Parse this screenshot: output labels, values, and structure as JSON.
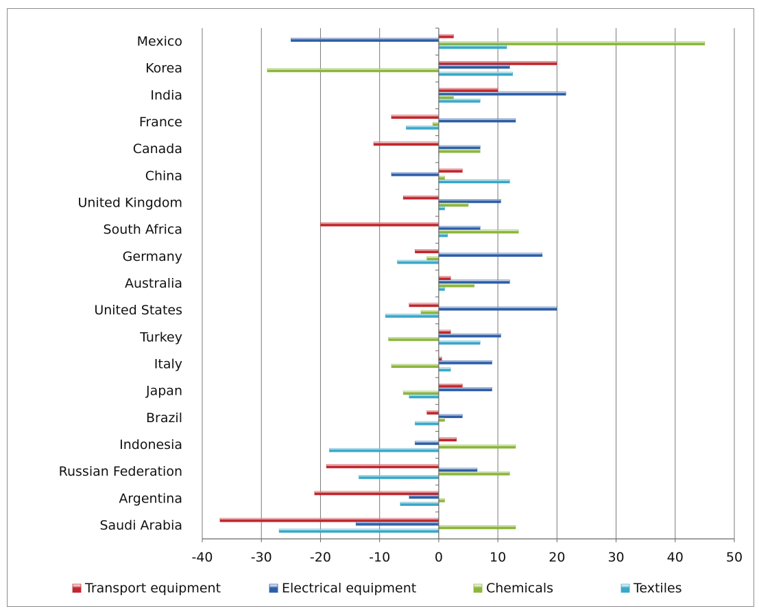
{
  "chart_data": {
    "type": "bar",
    "orientation": "horizontal",
    "categories": [
      "Mexico",
      "Korea",
      "India",
      "France",
      "Canada",
      "China",
      "United Kingdom",
      "South Africa",
      "Germany",
      "Australia",
      "United States",
      "Turkey",
      "Italy",
      "Japan",
      "Brazil",
      "Indonesia",
      "Russian Federation",
      "Argentina",
      "Saudi Arabia"
    ],
    "series": [
      {
        "name": "Transport equipment",
        "color": "#c0272d",
        "values": [
          2.5,
          20,
          10,
          -8,
          -11,
          4,
          -6,
          -20,
          -4,
          2,
          -5,
          2,
          0.5,
          4,
          -2,
          3,
          -19,
          -21,
          -37
        ]
      },
      {
        "name": "Electrical equipment",
        "color": "#2e5ea8",
        "values": [
          -25,
          12,
          21.5,
          13,
          7,
          -8,
          10.5,
          7,
          17.5,
          12,
          20,
          10.5,
          9,
          9,
          4,
          -4,
          6.5,
          -5,
          -14
        ]
      },
      {
        "name": "Chemicals",
        "color": "#8cb63c",
        "values": [
          45,
          -29,
          2.5,
          -1,
          7,
          1,
          5,
          13.5,
          -2,
          6,
          -3,
          -8.5,
          -8,
          -6,
          1,
          13,
          12,
          1,
          13
        ]
      },
      {
        "name": "Textiles",
        "color": "#3aa8c8",
        "values": [
          11.5,
          12.5,
          7,
          -5.5,
          0,
          12,
          1,
          1.5,
          -7,
          1,
          -9,
          7,
          2,
          -5,
          -4,
          -18.5,
          -13.5,
          -6.5,
          -27
        ]
      }
    ],
    "xlim": [
      -40,
      50
    ],
    "xticks": [
      "-40",
      "-30",
      "-20",
      "-10",
      "0",
      "10",
      "20",
      "30",
      "40",
      "50"
    ],
    "grid": true,
    "legend": "bottom",
    "title": "",
    "xlabel": "",
    "ylabel": ""
  }
}
